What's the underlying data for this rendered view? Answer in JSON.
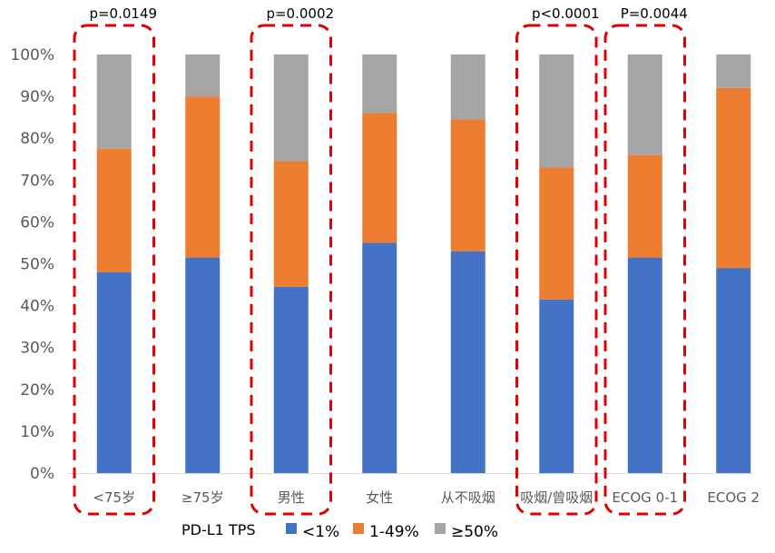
{
  "chart_data": {
    "type": "bar",
    "stacked": true,
    "normalized": true,
    "categories": [
      "<75岁",
      "≥75岁",
      "男性",
      "女性",
      "从不吸烟",
      "吸烟/曾吸烟",
      "ECOG 0-1",
      "ECOG 2"
    ],
    "series": [
      {
        "name": "<1%",
        "color": "#4472C4",
        "values": [
          48,
          51.5,
          44.5,
          55,
          53,
          41.5,
          51.5,
          49
        ]
      },
      {
        "name": "1-49%",
        "color": "#ED7D31",
        "values": [
          29.5,
          38.5,
          30,
          31,
          31.5,
          31.5,
          24.5,
          43
        ]
      },
      {
        "name": "≥50%",
        "color": "#A5A5A5",
        "values": [
          22.5,
          10,
          25.5,
          14,
          15.5,
          27,
          24,
          8
        ]
      }
    ],
    "y_ticks": [
      "0%",
      "10%",
      "20%",
      "30%",
      "40%",
      "50%",
      "60%",
      "70%",
      "80%",
      "90%",
      "100%"
    ],
    "ylim": [
      0,
      100
    ],
    "grid": false,
    "legend": {
      "title": "PD-L1 TPS",
      "position": "bottom"
    },
    "comparisons": [
      {
        "label": "p=0.0149",
        "groups": [
          0
        ]
      },
      {
        "label": "p=0.0002",
        "groups": [
          2
        ]
      },
      {
        "label": "p<0.0001",
        "groups": [
          5
        ]
      },
      {
        "label": "P=0.0044",
        "groups": [
          6
        ]
      }
    ],
    "highlight_color": "#E00000"
  }
}
